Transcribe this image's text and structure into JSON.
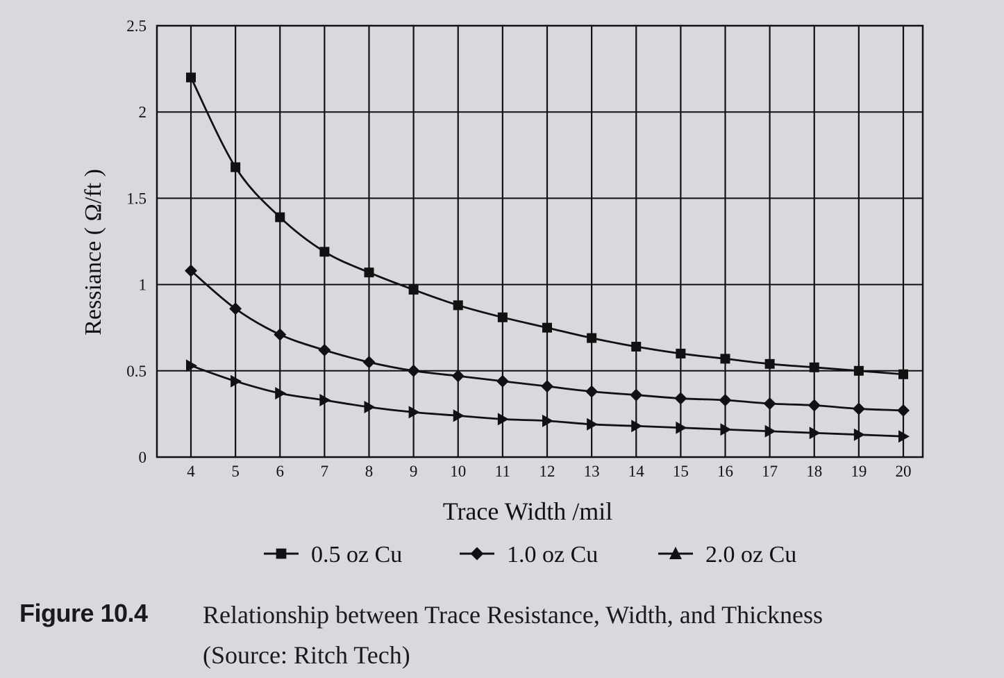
{
  "figure": {
    "number": "Figure 10.4",
    "caption_line1": "Relationship between Trace Resistance, Width, and Thickness",
    "caption_line2": "(Source: Ritch Tech)"
  },
  "colors": {
    "background": "#d9d8df",
    "ink": "#111111"
  },
  "chart_data": {
    "type": "line",
    "title": "Relationship between Trace Resistance, Width, and Thickness",
    "xlabel": "Trace Width /mil",
    "ylabel": "Ressiance ( Ω/ft )",
    "x": [
      4,
      5,
      6,
      7,
      8,
      9,
      10,
      11,
      12,
      13,
      14,
      15,
      16,
      17,
      18,
      19,
      20
    ],
    "xticks": [
      "4",
      "5",
      "6",
      "7",
      "8",
      "9",
      "10",
      "11",
      "12",
      "13",
      "14",
      "15",
      "16",
      "17",
      "18",
      "19",
      "20"
    ],
    "yticks": [
      "0",
      "0.5",
      "1",
      "1.5",
      "2",
      "2.5"
    ],
    "ytick_values": [
      0,
      0.5,
      1,
      1.5,
      2,
      2.5
    ],
    "ylim": [
      0,
      2.5
    ],
    "xlim": [
      3.25,
      20.45
    ],
    "grid": true,
    "legend_position": "bottom",
    "series": [
      {
        "name": "0.5 oz Cu",
        "marker": "square",
        "values": [
          2.2,
          1.68,
          1.39,
          1.19,
          1.07,
          0.97,
          0.88,
          0.81,
          0.75,
          0.69,
          0.64,
          0.6,
          0.57,
          0.54,
          0.52,
          0.5,
          0.48
        ]
      },
      {
        "name": "1.0 oz Cu",
        "marker": "diamond",
        "values": [
          1.08,
          0.86,
          0.71,
          0.62,
          0.55,
          0.5,
          0.47,
          0.44,
          0.41,
          0.38,
          0.36,
          0.34,
          0.33,
          0.31,
          0.3,
          0.28,
          0.27
        ]
      },
      {
        "name": "2.0 oz Cu",
        "marker": "triangle",
        "values": [
          0.53,
          0.44,
          0.37,
          0.33,
          0.29,
          0.26,
          0.24,
          0.22,
          0.21,
          0.19,
          0.18,
          0.17,
          0.16,
          0.15,
          0.14,
          0.13,
          0.12
        ]
      }
    ]
  }
}
